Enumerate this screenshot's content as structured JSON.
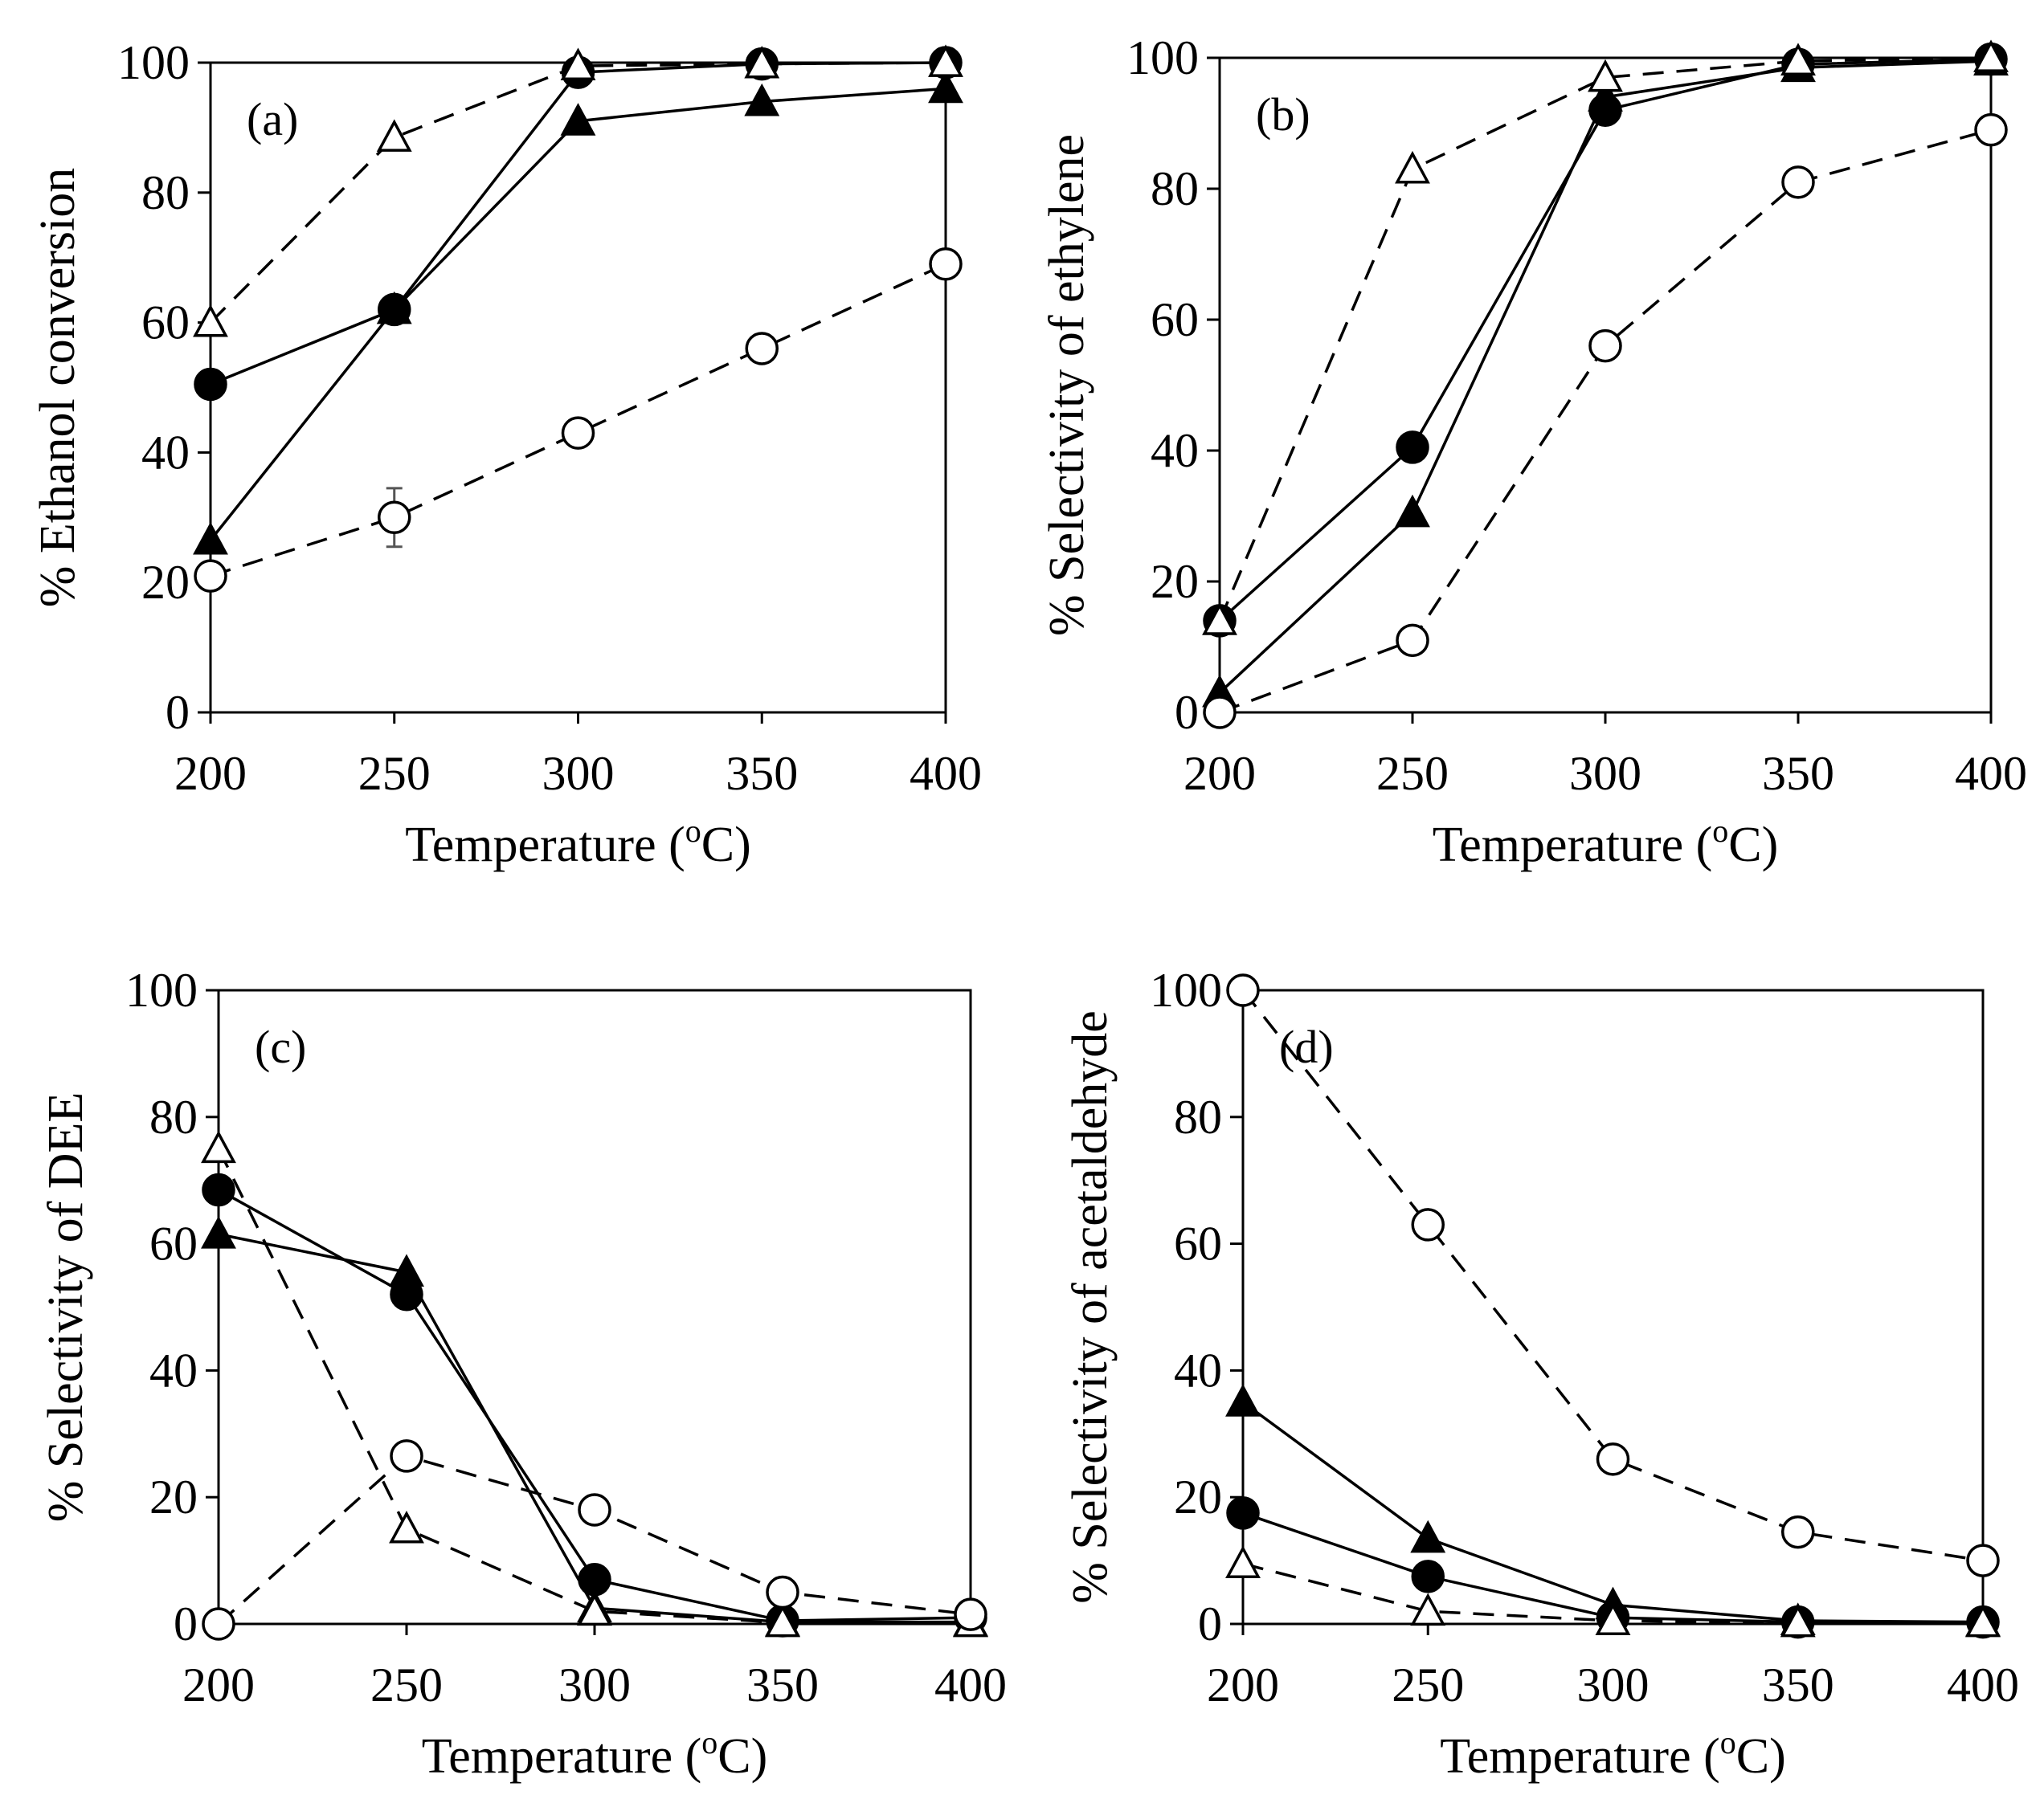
{
  "chart_data": [
    {
      "type": "line",
      "panel_label": "(a)",
      "xlabel": "Temperature (",
      "xlabel_sup": "o",
      "xlabel_end": "C)",
      "ylabel": "% Ethanol conversion",
      "xlim": [
        200,
        400
      ],
      "ylim": [
        0,
        100
      ],
      "x_ticks": [
        "200",
        "250",
        "300",
        "350",
        "400"
      ],
      "y_ticks": [
        "0",
        "20",
        "40",
        "60",
        "80",
        "100"
      ],
      "x": [
        200,
        250,
        300,
        350,
        400
      ],
      "series": [
        {
          "name": "filled circle",
          "marker": "circle",
          "filled": true,
          "dashed": false,
          "values": [
            50.5,
            62,
            98.5,
            99.8,
            100
          ]
        },
        {
          "name": "filled triangle",
          "marker": "triangle",
          "filled": true,
          "dashed": false,
          "values": [
            26.5,
            62,
            91,
            94,
            96
          ]
        },
        {
          "name": "open triangle",
          "marker": "triangle",
          "filled": false,
          "dashed": true,
          "values": [
            60,
            88.5,
            99.5,
            99.8,
            100
          ]
        },
        {
          "name": "open circle",
          "marker": "circle",
          "filled": false,
          "dashed": true,
          "values": [
            21,
            30,
            43,
            56,
            69
          ],
          "errors": [
            0,
            4.5,
            0,
            0,
            0
          ]
        }
      ]
    },
    {
      "type": "line",
      "panel_label": "(b)",
      "xlabel": "Temperature (",
      "xlabel_sup": "o",
      "xlabel_end": "C)",
      "ylabel": "% Selectivity of ethylene",
      "xlim": [
        200,
        400
      ],
      "ylim": [
        0,
        100
      ],
      "x_ticks": [
        "200",
        "250",
        "300",
        "350",
        "400"
      ],
      "y_ticks": [
        "0",
        "20",
        "40",
        "60",
        "80",
        "100"
      ],
      "x": [
        200,
        250,
        300,
        350,
        400
      ],
      "series": [
        {
          "name": "filled circle",
          "marker": "circle",
          "filled": true,
          "dashed": false,
          "values": [
            14,
            40.5,
            92,
            99,
            99.8
          ]
        },
        {
          "name": "filled triangle",
          "marker": "triangle",
          "filled": true,
          "dashed": false,
          "values": [
            3,
            30.5,
            94,
            98.5,
            99.5
          ]
        },
        {
          "name": "open triangle",
          "marker": "triangle",
          "filled": false,
          "dashed": true,
          "values": [
            14,
            83,
            97,
            99.5,
            100
          ]
        },
        {
          "name": "open circle",
          "marker": "circle",
          "filled": false,
          "dashed": true,
          "values": [
            0,
            11,
            56,
            81,
            89
          ]
        }
      ]
    },
    {
      "type": "line",
      "panel_label": "(c)",
      "xlabel": "Temperature (",
      "xlabel_sup": "o",
      "xlabel_end": "C)",
      "ylabel": "% Selectivity of DEE",
      "xlim": [
        200,
        400
      ],
      "ylim": [
        0,
        100
      ],
      "x_ticks": [
        "200",
        "250",
        "300",
        "350",
        "400"
      ],
      "y_ticks": [
        "0",
        "20",
        "40",
        "60",
        "80",
        "100"
      ],
      "x": [
        200,
        250,
        300,
        350,
        400
      ],
      "series": [
        {
          "name": "filled circle",
          "marker": "circle",
          "filled": true,
          "dashed": false,
          "values": [
            68.5,
            52,
            7,
            0.5,
            1
          ]
        },
        {
          "name": "filled triangle",
          "marker": "triangle",
          "filled": true,
          "dashed": false,
          "values": [
            61.5,
            55.5,
            2.5,
            0.3,
            0.3
          ]
        },
        {
          "name": "open triangle",
          "marker": "triangle",
          "filled": false,
          "dashed": true,
          "values": [
            75,
            15,
            2,
            0.2,
            0.2
          ]
        },
        {
          "name": "open circle",
          "marker": "circle",
          "filled": false,
          "dashed": true,
          "values": [
            0,
            26.5,
            18,
            5,
            1.5
          ]
        }
      ]
    },
    {
      "type": "line",
      "panel_label": "(d)",
      "xlabel": "Temperature (",
      "xlabel_sup": "o",
      "xlabel_end": "C)",
      "ylabel": "% Selectivity of acetaldehyde",
      "xlim": [
        200,
        400
      ],
      "ylim": [
        0,
        100
      ],
      "x_ticks": [
        "200",
        "250",
        "300",
        "350",
        "400"
      ],
      "y_ticks": [
        "0",
        "20",
        "40",
        "60",
        "80",
        "100"
      ],
      "x": [
        200,
        250,
        300,
        350,
        400
      ],
      "series": [
        {
          "name": "filled circle",
          "marker": "circle",
          "filled": true,
          "dashed": false,
          "values": [
            17.5,
            7.5,
            1,
            0.3,
            0.3
          ]
        },
        {
          "name": "filled triangle",
          "marker": "triangle",
          "filled": true,
          "dashed": false,
          "values": [
            35,
            13.5,
            3,
            0.5,
            0.3
          ]
        },
        {
          "name": "open triangle",
          "marker": "triangle",
          "filled": false,
          "dashed": true,
          "values": [
            9.5,
            2,
            0.5,
            0.2,
            0.2
          ]
        },
        {
          "name": "open circle",
          "marker": "circle",
          "filled": false,
          "dashed": true,
          "values": [
            100,
            63,
            26,
            14.5,
            10
          ]
        }
      ]
    }
  ]
}
